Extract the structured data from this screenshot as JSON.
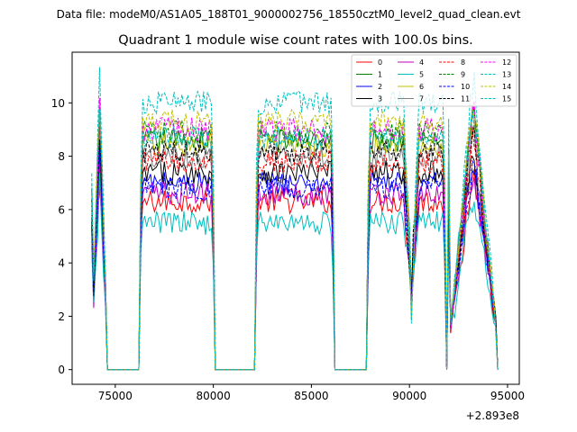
{
  "suptitle": "Data file: modeM0/AS1A05_188T01_9000002756_18550cztM0_level2_quad_clean.evt",
  "chart_data": {
    "type": "line",
    "title": "Quadrant 1 module wise count rates with 100.0s bins.",
    "xlabel": "",
    "ylabel": "",
    "x_offset_label": "+2.893e8",
    "xlim": [
      72800,
      95600
    ],
    "ylim": [
      -0.55,
      11.9
    ],
    "xticks": [
      75000,
      80000,
      85000,
      90000,
      95000
    ],
    "xtick_labels": [
      "75000",
      "80000",
      "85000",
      "90000",
      "95000"
    ],
    "yticks": [
      0,
      2,
      4,
      6,
      8,
      10
    ],
    "ytick_labels": [
      "0",
      "2",
      "4",
      "6",
      "8",
      "10"
    ],
    "grid": false,
    "legend_position": "top-right",
    "legend_columns": 4,
    "series": [
      {
        "name": "0",
        "color": "#ff0000",
        "dash": "solid",
        "level": 6.3
      },
      {
        "name": "1",
        "color": "#008000",
        "dash": "solid",
        "level": 8.6
      },
      {
        "name": "2",
        "color": "#0000ff",
        "dash": "solid",
        "level": 7.0
      },
      {
        "name": "3",
        "color": "#000000",
        "dash": "solid",
        "level": 7.4
      },
      {
        "name": "4",
        "color": "#bf00bf",
        "dash": "solid",
        "level": 6.6
      },
      {
        "name": "5",
        "color": "#00bfbf",
        "dash": "solid",
        "level": 5.5
      },
      {
        "name": "6",
        "color": "#bfbf00",
        "dash": "solid",
        "level": 8.4
      },
      {
        "name": "7",
        "color": "#808080",
        "dash": "solid",
        "level": 8.0
      },
      {
        "name": "8",
        "color": "#ff0000",
        "dash": "dashed",
        "level": 7.8
      },
      {
        "name": "9",
        "color": "#008000",
        "dash": "dashed",
        "level": 8.9
      },
      {
        "name": "10",
        "color": "#0000ff",
        "dash": "dashed",
        "level": 6.8
      },
      {
        "name": "11",
        "color": "#000000",
        "dash": "dashed",
        "level": 8.2
      },
      {
        "name": "12",
        "color": "#ff00ff",
        "dash": "dashed",
        "level": 9.0
      },
      {
        "name": "13",
        "color": "#00bfbf",
        "dash": "dashed",
        "level": 10.0
      },
      {
        "name": "14",
        "color": "#bfbf00",
        "dash": "dashed",
        "level": 9.3
      },
      {
        "name": "15",
        "color": "#00bfbf",
        "dash": "dashed",
        "level": 8.7
      }
    ],
    "segments": [
      {
        "start": 73800,
        "end": 74600,
        "type": "spike"
      },
      {
        "start": 76300,
        "end": 80000,
        "type": "plateau"
      },
      {
        "start": 82200,
        "end": 86100,
        "type": "plateau"
      },
      {
        "start": 87900,
        "end": 91800,
        "type": "plateau_dip",
        "dip_at": 90100
      },
      {
        "start": 92000,
        "end": 94500,
        "type": "spike"
      }
    ]
  }
}
